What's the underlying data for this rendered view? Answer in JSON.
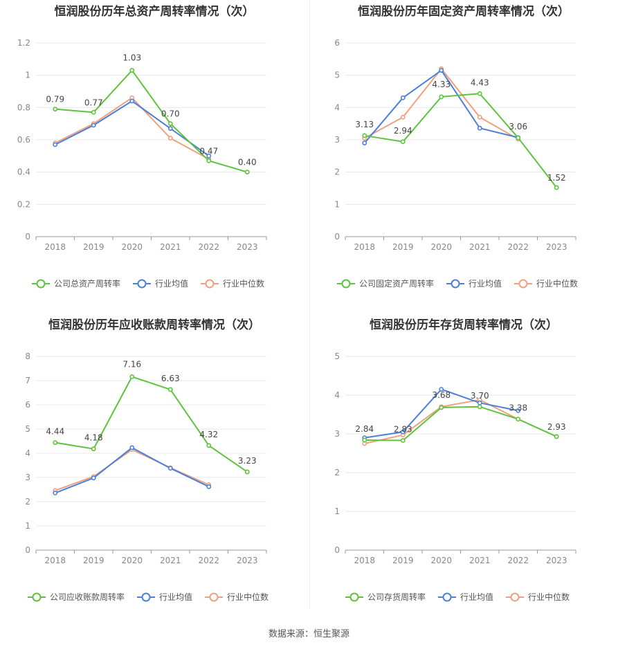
{
  "colors": {
    "company": "#5cc43a",
    "avg": "#4a7fdc",
    "median": "#f0a07c"
  },
  "source": "数据来源：恒生聚源",
  "chart_data": [
    {
      "type": "line",
      "title": "恒润股份历年总资产周转率情况（次）",
      "categories": [
        "2018",
        "2019",
        "2020",
        "2021",
        "2022",
        "2023"
      ],
      "ylim": [
        0,
        1.2
      ],
      "yticks": [
        "0",
        "0.2",
        "0.4",
        "0.6",
        "0.8",
        "1",
        "1.2"
      ],
      "series": [
        {
          "name": "公司总资产周转率",
          "key": "company",
          "values": [
            0.79,
            0.77,
            1.03,
            0.7,
            0.47,
            0.4
          ],
          "labels": [
            "0.79",
            "0.77",
            "1.03",
            "0.70",
            "0.47",
            "0.40"
          ]
        },
        {
          "name": "行业均值",
          "key": "avg",
          "values": [
            0.57,
            0.69,
            0.84,
            0.67,
            0.5,
            null
          ]
        },
        {
          "name": "行业中位数",
          "key": "median",
          "values": [
            0.58,
            0.7,
            0.86,
            0.61,
            0.48,
            null
          ]
        }
      ]
    },
    {
      "type": "line",
      "title": "恒润股份历年固定资产周转率情况（次）",
      "categories": [
        "2018",
        "2019",
        "2020",
        "2021",
        "2022",
        "2023"
      ],
      "ylim": [
        0,
        6
      ],
      "yticks": [
        "0",
        "1",
        "2",
        "3",
        "4",
        "5",
        "6"
      ],
      "series": [
        {
          "name": "公司固定资产周转率",
          "key": "company",
          "values": [
            3.13,
            2.94,
            4.33,
            4.43,
            3.06,
            1.52
          ],
          "labels": [
            "3.13",
            "2.94",
            "4.33",
            "4.43",
            "3.06",
            "1.52"
          ]
        },
        {
          "name": "行业均值",
          "key": "avg",
          "values": [
            2.9,
            4.3,
            5.15,
            3.36,
            3.07,
            null
          ]
        },
        {
          "name": "行业中位数",
          "key": "median",
          "values": [
            3.05,
            3.7,
            5.2,
            3.7,
            3.02,
            null
          ]
        }
      ]
    },
    {
      "type": "line",
      "title": "恒润股份历年应收账款周转率情况（次）",
      "categories": [
        "2018",
        "2019",
        "2020",
        "2021",
        "2022",
        "2023"
      ],
      "ylim": [
        0,
        8
      ],
      "yticks": [
        "0",
        "1",
        "2",
        "3",
        "4",
        "5",
        "6",
        "7",
        "8"
      ],
      "series": [
        {
          "name": "公司应收账款周转率",
          "key": "company",
          "values": [
            4.44,
            4.18,
            7.16,
            6.63,
            4.32,
            3.23
          ],
          "labels": [
            "4.44",
            "4.18",
            "7.16",
            "6.63",
            "4.32",
            "3.23"
          ]
        },
        {
          "name": "行业均值",
          "key": "avg",
          "values": [
            2.36,
            2.98,
            4.23,
            3.38,
            2.62,
            null
          ]
        },
        {
          "name": "行业中位数",
          "key": "median",
          "values": [
            2.46,
            3.04,
            4.15,
            3.4,
            2.7,
            null
          ]
        }
      ]
    },
    {
      "type": "line",
      "title": "恒润股份历年存货周转率情况（次）",
      "categories": [
        "2018",
        "2019",
        "2020",
        "2021",
        "2022",
        "2023"
      ],
      "ylim": [
        0,
        5
      ],
      "yticks": [
        "0",
        "1",
        "2",
        "3",
        "4",
        "5"
      ],
      "series": [
        {
          "name": "公司存货周转率",
          "key": "company",
          "values": [
            2.84,
            2.83,
            3.68,
            3.7,
            3.38,
            2.93
          ],
          "labels": [
            "2.84",
            "2.83",
            "3.68",
            "3.70",
            "3.38",
            "2.93"
          ]
        },
        {
          "name": "行业均值",
          "key": "avg",
          "values": [
            2.9,
            3.05,
            4.15,
            3.8,
            3.6,
            null
          ]
        },
        {
          "name": "行业中位数",
          "key": "median",
          "values": [
            2.75,
            2.97,
            3.7,
            3.88,
            3.38,
            null
          ]
        }
      ]
    }
  ]
}
